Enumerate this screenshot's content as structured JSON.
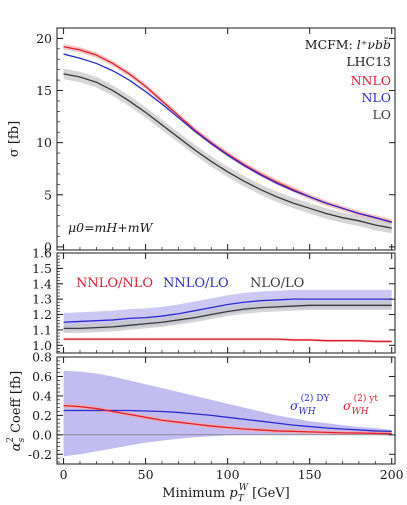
{
  "colors": {
    "nnlo": "#e02030",
    "nlo": "#2a2ad0",
    "lo": "#3a3a3a",
    "nnlo_band": "#f4aaaa",
    "nlo_band": "#b8b0ee",
    "lo_band": "#c4c4c4",
    "frame": "#1a1a1a"
  },
  "chart_data": [
    {
      "type": "line",
      "panel": "top",
      "ylabel": "σ [fb]",
      "ylim": [
        -0.3,
        21
      ],
      "yticks": [
        0,
        5,
        10,
        15,
        20
      ],
      "xlim": [
        -4,
        202
      ],
      "xticks": [
        0,
        50,
        100,
        150,
        200
      ],
      "annotations": {
        "process_prefix": "MCFM: ",
        "process": "l⁺νbb̄",
        "collider": "LHC13",
        "scale": "μ0=mH+mW"
      },
      "legend": [
        "NNLO",
        "NLO",
        "LO"
      ],
      "legend_position": "top-right",
      "x": [
        0,
        10,
        20,
        30,
        40,
        50,
        60,
        70,
        80,
        90,
        100,
        110,
        120,
        130,
        140,
        150,
        160,
        170,
        180,
        190,
        200
      ],
      "series": [
        {
          "name": "NNLO",
          "values": [
            19.2,
            18.9,
            18.4,
            17.6,
            16.6,
            15.4,
            14.0,
            12.6,
            11.2,
            10.0,
            8.9,
            7.9,
            7.0,
            6.2,
            5.5,
            4.8,
            4.2,
            3.7,
            3.2,
            2.8,
            2.4
          ],
          "band": 0.25
        },
        {
          "name": "NLO",
          "values": [
            18.5,
            18.1,
            17.6,
            16.9,
            16.0,
            14.9,
            13.7,
            12.4,
            11.1,
            9.9,
            8.8,
            7.8,
            6.9,
            6.1,
            5.4,
            4.8,
            4.2,
            3.7,
            3.2,
            2.8,
            2.35
          ],
          "band": 0.0
        },
        {
          "name": "LO",
          "values": [
            16.6,
            16.3,
            15.8,
            15.0,
            14.0,
            12.9,
            11.7,
            10.5,
            9.3,
            8.2,
            7.2,
            6.3,
            5.5,
            4.8,
            4.2,
            3.7,
            3.2,
            2.8,
            2.5,
            2.1,
            1.8
          ],
          "band": 0.5
        }
      ]
    },
    {
      "type": "line",
      "panel": "middle",
      "ylim": [
        0.95,
        1.6
      ],
      "yticks": [
        1.0,
        1.1,
        1.2,
        1.3,
        1.4,
        1.5,
        1.6
      ],
      "xlim": [
        -4,
        202
      ],
      "legend": [
        "NNLO/NLO",
        "NNLO/LO",
        "NLO/LO"
      ],
      "legend_position": "top",
      "x": [
        0,
        10,
        20,
        30,
        40,
        50,
        60,
        70,
        80,
        90,
        100,
        110,
        120,
        130,
        140,
        150,
        160,
        170,
        180,
        190,
        200
      ],
      "series": [
        {
          "name": "NNLO/NLO",
          "values": [
            1.04,
            1.04,
            1.04,
            1.04,
            1.04,
            1.04,
            1.04,
            1.04,
            1.04,
            1.04,
            1.04,
            1.04,
            1.04,
            1.04,
            1.035,
            1.035,
            1.03,
            1.03,
            1.03,
            1.025,
            1.025
          ],
          "band": 0.008
        },
        {
          "name": "NNLO/LO",
          "values": [
            1.15,
            1.155,
            1.16,
            1.165,
            1.175,
            1.18,
            1.19,
            1.205,
            1.225,
            1.245,
            1.265,
            1.28,
            1.29,
            1.295,
            1.3,
            1.3,
            1.3,
            1.3,
            1.3,
            1.3,
            1.3
          ],
          "band": 0.06
        },
        {
          "name": "NLO/LO",
          "values": [
            1.11,
            1.11,
            1.115,
            1.12,
            1.13,
            1.14,
            1.15,
            1.165,
            1.18,
            1.2,
            1.22,
            1.235,
            1.245,
            1.25,
            1.255,
            1.26,
            1.26,
            1.26,
            1.26,
            1.26,
            1.26
          ],
          "band": 0.03
        }
      ]
    },
    {
      "type": "line",
      "panel": "bottom",
      "ylabel": "α_s^2 Coeff [fb]",
      "ylim": [
        -0.3,
        0.8
      ],
      "yticks": [
        -0.2,
        0.0,
        0.2,
        0.4,
        0.6,
        0.8
      ],
      "xlim": [
        -4,
        202
      ],
      "xticks": [
        0,
        50,
        100,
        150,
        200
      ],
      "xlabel": "Minimum p_T^W [GeV]",
      "legend": [
        "σ(2) DY WH",
        "σ(2) yt WH"
      ],
      "legend_position": "right",
      "x": [
        0,
        10,
        20,
        30,
        40,
        50,
        60,
        70,
        80,
        90,
        100,
        110,
        120,
        130,
        140,
        150,
        160,
        170,
        180,
        190,
        200
      ],
      "series": [
        {
          "name": "σ(2) DY WH",
          "values": [
            0.25,
            0.25,
            0.25,
            0.25,
            0.25,
            0.245,
            0.24,
            0.23,
            0.215,
            0.2,
            0.18,
            0.16,
            0.14,
            0.12,
            0.1,
            0.085,
            0.07,
            0.06,
            0.05,
            0.04,
            0.035
          ],
          "band_lower": [
            -0.22,
            -0.2,
            -0.17,
            -0.14,
            -0.11,
            -0.08,
            -0.06,
            -0.04,
            -0.025,
            -0.015,
            -0.005,
            0.0,
            0.0,
            0.0,
            0.0,
            0.0,
            0.0,
            0.0,
            0.0,
            0.0,
            0.0
          ],
          "band_upper": [
            0.66,
            0.65,
            0.63,
            0.6,
            0.56,
            0.52,
            0.48,
            0.44,
            0.4,
            0.36,
            0.32,
            0.28,
            0.24,
            0.2,
            0.17,
            0.14,
            0.12,
            0.1,
            0.08,
            0.07,
            0.05
          ]
        },
        {
          "name": "σ(2) yt WH",
          "values": [
            0.3,
            0.29,
            0.27,
            0.24,
            0.21,
            0.18,
            0.15,
            0.13,
            0.11,
            0.09,
            0.075,
            0.06,
            0.05,
            0.04,
            0.035,
            0.03,
            0.025,
            0.02,
            0.018,
            0.015,
            0.012
          ],
          "band": 0.02
        }
      ]
    }
  ]
}
